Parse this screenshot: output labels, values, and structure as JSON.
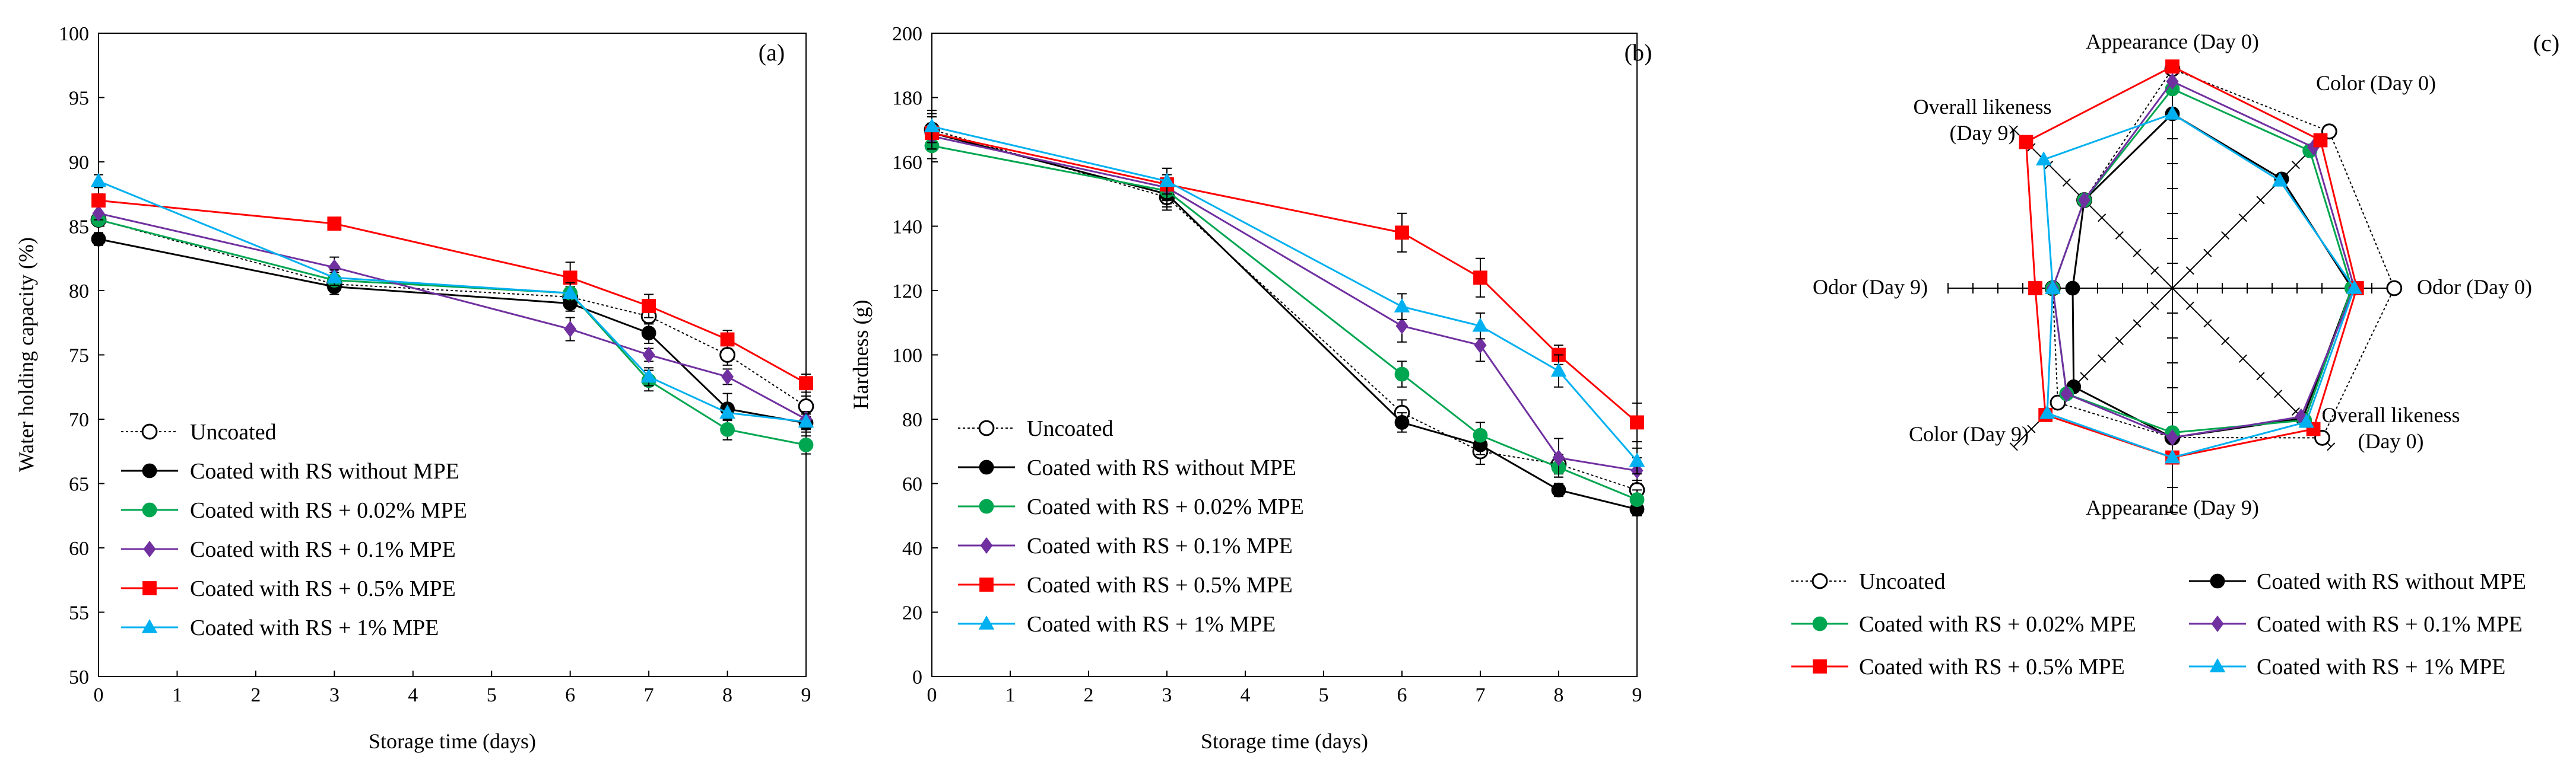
{
  "series_styles": [
    {
      "name": "Uncoated",
      "color": "#000000",
      "marker": "circle-open",
      "dash": true
    },
    {
      "name": "Coated with RS without MPE",
      "color": "#000000",
      "marker": "circle"
    },
    {
      "name": "Coated with RS + 0.02% MPE",
      "color": "#00a650",
      "marker": "circle"
    },
    {
      "name": "Coated with RS + 0.1% MPE",
      "color": "#7030a0",
      "marker": "diamond"
    },
    {
      "name": "Coated with RS + 0.5% MPE",
      "color": "#ff0000",
      "marker": "square"
    },
    {
      "name": "Coated with RS + 1% MPE",
      "color": "#00b0f0",
      "marker": "triangle"
    }
  ],
  "chart_data": [
    {
      "type": "line",
      "panel": "(a)",
      "xlabel": "Storage time (days)",
      "ylabel": "Water holding capacity (%)",
      "xlim": [
        0,
        9
      ],
      "ylim": [
        50,
        100
      ],
      "xticks": [
        0,
        1,
        2,
        3,
        4,
        5,
        6,
        7,
        8,
        9
      ],
      "yticks": [
        50,
        55,
        60,
        65,
        70,
        75,
        80,
        85,
        90,
        95,
        100
      ],
      "x": [
        0,
        3,
        6,
        7,
        8,
        9
      ],
      "legend": "bottom-left",
      "series": [
        {
          "name": "Uncoated",
          "values": [
            85.5,
            80.5,
            79.5,
            78.0,
            75.0,
            71.0
          ],
          "err": [
            0.5,
            0.6,
            0.8,
            0.6,
            0.8,
            0.8
          ]
        },
        {
          "name": "Coated with RS without MPE",
          "values": [
            84.0,
            80.3,
            79.0,
            76.7,
            70.8,
            69.7
          ],
          "err": [
            0.5,
            0.6,
            0.6,
            0.8,
            1.2,
            0.7
          ]
        },
        {
          "name": "Coated with RS + 0.02% MPE",
          "values": [
            85.5,
            80.8,
            79.8,
            73.0,
            69.2,
            68.0
          ],
          "err": [
            0.5,
            0.6,
            0.8,
            0.8,
            0.8,
            0.7
          ]
        },
        {
          "name": "Coated with RS + 0.1% MPE",
          "values": [
            86.0,
            81.8,
            77.0,
            75.0,
            73.3,
            70.0
          ],
          "err": [
            0.5,
            0.8,
            0.9,
            0.5,
            0.6,
            0.6
          ]
        },
        {
          "name": "Coated with RS + 0.5% MPE",
          "values": [
            87.0,
            85.2,
            81.0,
            78.8,
            76.2,
            72.8
          ],
          "err": [
            0.5,
            0.4,
            1.2,
            0.9,
            0.7,
            0.7
          ]
        },
        {
          "name": "Coated with RS + 1% MPE",
          "values": [
            88.5,
            81.0,
            79.8,
            73.3,
            70.5,
            69.8
          ],
          "err": [
            0.5,
            0.6,
            0.8,
            0.7,
            0.6,
            0.6
          ]
        }
      ]
    },
    {
      "type": "line",
      "panel": "(b)",
      "xlabel": "Storage time (days)",
      "ylabel": "Hardness (g)",
      "xlim": [
        0,
        9
      ],
      "ylim": [
        0,
        200
      ],
      "xticks": [
        0,
        1,
        2,
        3,
        4,
        5,
        6,
        7,
        8,
        9
      ],
      "yticks": [
        0,
        20,
        40,
        60,
        80,
        100,
        120,
        140,
        160,
        180,
        200
      ],
      "x": [
        0,
        3,
        6,
        7,
        8,
        9
      ],
      "legend": "bottom-left",
      "series": [
        {
          "name": "Uncoated",
          "values": [
            170,
            149,
            82,
            70,
            66,
            58
          ],
          "err": [
            5,
            4,
            4,
            4,
            3,
            3
          ]
        },
        {
          "name": "Coated with RS without MPE",
          "values": [
            169,
            150,
            79,
            72,
            58,
            52
          ],
          "err": [
            5,
            4,
            3,
            3,
            2,
            2
          ]
        },
        {
          "name": "Coated with RS + 0.02% MPE",
          "values": [
            165,
            151,
            94,
            75,
            65,
            55
          ],
          "err": [
            4,
            4,
            4,
            4,
            3,
            3
          ]
        },
        {
          "name": "Coated with RS + 0.1% MPE",
          "values": [
            168,
            152,
            109,
            103,
            68,
            64
          ],
          "err": [
            4,
            4,
            5,
            5,
            6,
            4
          ]
        },
        {
          "name": "Coated with RS + 0.5% MPE",
          "values": [
            169,
            153,
            138,
            124,
            100,
            79
          ],
          "err": [
            5,
            5,
            6,
            6,
            3,
            6
          ]
        },
        {
          "name": "Coated with RS + 1% MPE",
          "values": [
            171,
            154,
            115,
            109,
            95,
            67
          ],
          "err": [
            5,
            4,
            4,
            4,
            5,
            4
          ]
        }
      ]
    },
    {
      "type": "radar",
      "panel": "(c)",
      "axes": [
        "Appearance (Day 0)",
        "Color (Day 0)",
        "Odor (Day 0)",
        "Overall likeness (Day 0)",
        "Appearance (Day 9)",
        "Color (Day 9)",
        "Odor (Day 9)",
        "Overall likeness (Day 9)"
      ],
      "rmax": 9,
      "legend": "bottom",
      "series": [
        {
          "name": "Uncoated",
          "values": [
            8.8,
            8.9,
            8.9,
            8.5,
            6.0,
            6.5,
            4.8,
            5.0
          ]
        },
        {
          "name": "Coated with RS without MPE",
          "values": [
            7.0,
            6.2,
            7.2,
            7.4,
            6.0,
            5.6,
            4.0,
            5.0
          ]
        },
        {
          "name": "Coated with RS + 0.02% MPE",
          "values": [
            8.0,
            7.8,
            7.2,
            7.5,
            5.8,
            6.0,
            4.8,
            5.0
          ]
        },
        {
          "name": "Coated with RS + 0.1% MPE",
          "values": [
            8.3,
            8.0,
            7.3,
            7.3,
            6.0,
            6.0,
            4.8,
            5.0
          ]
        },
        {
          "name": "Coated with RS + 0.5% MPE",
          "values": [
            8.9,
            8.4,
            7.4,
            8.0,
            6.8,
            7.2,
            5.5,
            8.3
          ]
        },
        {
          "name": "Coated with RS + 1% MPE",
          "values": [
            7.0,
            6.1,
            7.3,
            7.6,
            6.8,
            7.1,
            4.8,
            7.3
          ]
        }
      ]
    }
  ]
}
